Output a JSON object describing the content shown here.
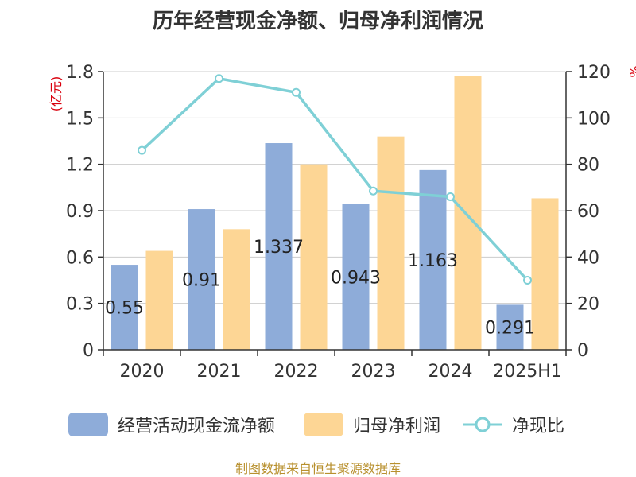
{
  "colors": {
    "cashflow": "#8eacd9",
    "profit": "#fdd695",
    "ratio": "#7fd0d6",
    "axis": "#333333",
    "grid": "#cccccc",
    "unit_red": "#d9000d",
    "footer": "#b8902e"
  },
  "footer": "制图数据来自恒生聚源数据库",
  "chart_data": {
    "type": "bar",
    "title": "历年经营现金净额、归母净利润情况",
    "categories": [
      "2020",
      "2021",
      "2022",
      "2023",
      "2024",
      "2025H1"
    ],
    "y_left": {
      "unit": "(亿元)",
      "min": 0,
      "max": 1.8,
      "ticks": [
        "0",
        "0.3",
        "0.6",
        "0.9",
        "1.2",
        "1.5",
        "1.8"
      ]
    },
    "y_right": {
      "unit": "%",
      "min": 0,
      "max": 120,
      "ticks": [
        "0",
        "20",
        "40",
        "60",
        "80",
        "100",
        "120"
      ]
    },
    "grid": true,
    "legend_position": "bottom",
    "series": [
      {
        "name": "经营活动现金流净额",
        "type": "bar",
        "axis": "left",
        "values": [
          0.55,
          0.91,
          1.337,
          0.943,
          1.163,
          0.291
        ],
        "labels": [
          "0.55",
          "0.91",
          "1.337",
          "0.943",
          "1.163",
          "0.291"
        ]
      },
      {
        "name": "归母净利润",
        "type": "bar",
        "axis": "left",
        "values": [
          0.64,
          0.78,
          1.2,
          1.38,
          1.77,
          0.98
        ]
      },
      {
        "name": "净现比",
        "type": "line",
        "axis": "right",
        "values": [
          86,
          117,
          111,
          68.5,
          66,
          30
        ]
      }
    ]
  }
}
